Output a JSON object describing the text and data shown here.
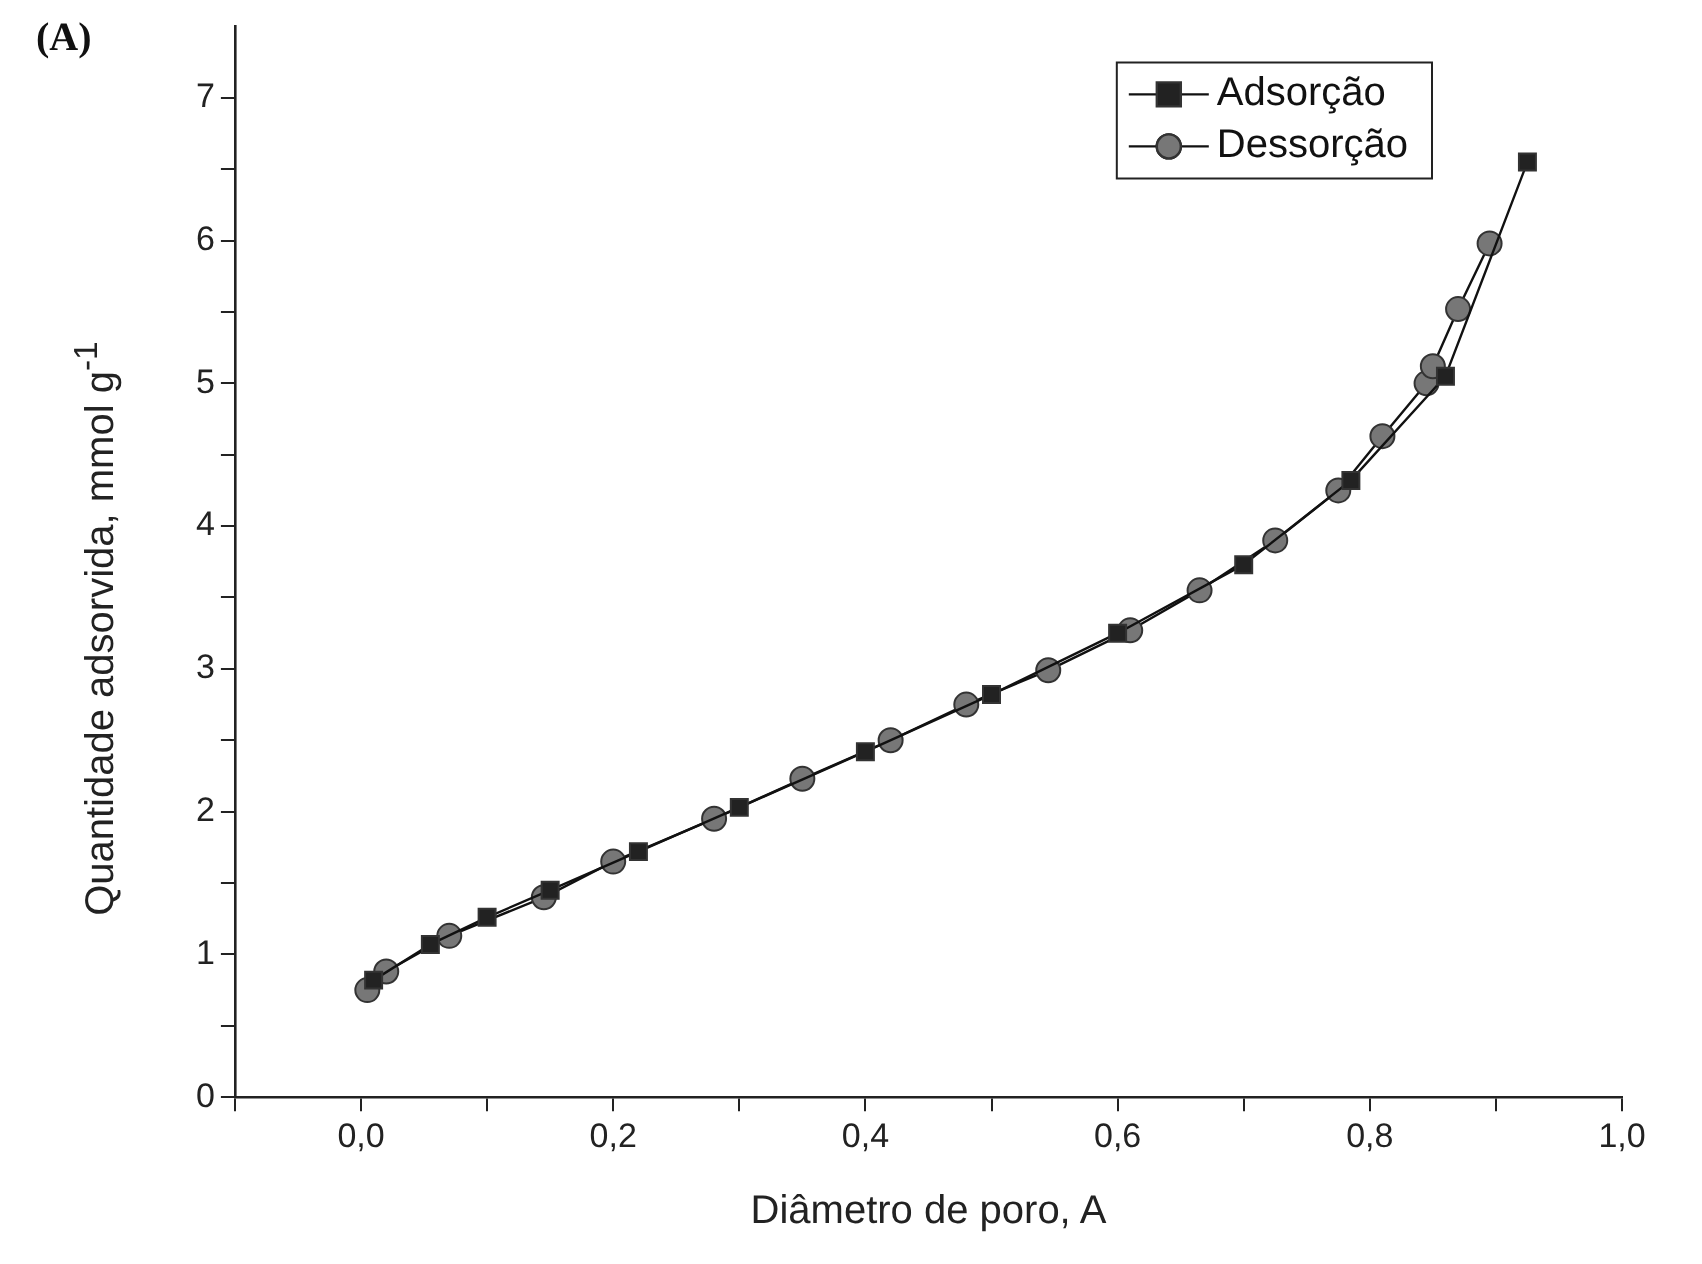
{
  "chart_data": {
    "type": "line",
    "xlabel": "Diâmetro de poro, A",
    "ylabel": "Quantidade adsorvida, mmol g$^{-1}$",
    "annotations": [
      "(A)"
    ],
    "xlim": [
      -0.1,
      1.0
    ],
    "ylim": [
      0,
      7.5
    ],
    "xticks": [
      {
        "value": -0.1,
        "label": null
      },
      {
        "value": 0,
        "label": "0,0"
      },
      {
        "value": 0.1,
        "label": null
      },
      {
        "value": 0.2,
        "label": "0,2"
      },
      {
        "value": 0.3,
        "label": null
      },
      {
        "value": 0.4,
        "label": "0,4"
      },
      {
        "value": 0.5,
        "label": null
      },
      {
        "value": 0.6,
        "label": "0,6"
      },
      {
        "value": 0.7,
        "label": null
      },
      {
        "value": 0.8,
        "label": "0,8"
      },
      {
        "value": 0.9,
        "label": null
      },
      {
        "value": 1.0,
        "label": "1,0"
      }
    ],
    "yticks": [
      0,
      {
        "value": 0.5,
        "label": null
      },
      1,
      {
        "value": 1.5,
        "label": null
      },
      2,
      {
        "value": 2.5,
        "label": null
      },
      3,
      {
        "value": 3.5,
        "label": null
      },
      4,
      {
        "value": 4.5,
        "label": null
      },
      5,
      {
        "value": 5.5,
        "label": null
      },
      6,
      {
        "value": 6.5,
        "label": null
      },
      7
    ],
    "grid": false,
    "legend": "top right",
    "line_style": "solid",
    "series": [
      {
        "name": "Adsorção",
        "color": "#222222",
        "marker": "square",
        "x": [
          0.01,
          0.055,
          0.1,
          0.15,
          0.22,
          0.3,
          0.4,
          0.5,
          0.6,
          0.7,
          0.785,
          0.86,
          0.925
        ],
        "values": [
          0.82,
          1.07,
          1.26,
          1.45,
          1.72,
          2.03,
          2.42,
          2.82,
          3.25,
          3.73,
          4.32,
          5.05,
          6.55
        ]
      },
      {
        "name": "Dessorção",
        "color": "#777777",
        "marker": "circle",
        "x": [
          0.005,
          0.02,
          0.07,
          0.145,
          0.2,
          0.28,
          0.35,
          0.42,
          0.48,
          0.545,
          0.61,
          0.665,
          0.725,
          0.775,
          0.81,
          0.845,
          0.85,
          0.87,
          0.895
        ],
        "values": [
          0.75,
          0.88,
          1.13,
          1.4,
          1.65,
          1.95,
          2.23,
          2.5,
          2.75,
          2.99,
          3.27,
          3.55,
          3.9,
          4.25,
          4.63,
          5.0,
          5.12,
          5.52,
          5.98
        ]
      }
    ]
  }
}
